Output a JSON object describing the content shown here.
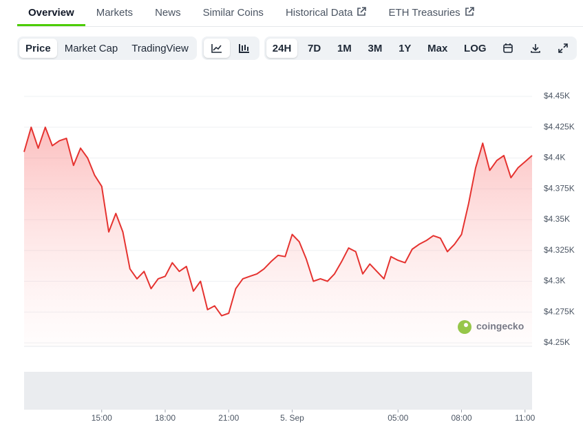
{
  "tabs": [
    "Overview",
    "Markets",
    "News",
    "Similar Coins",
    "Historical Data",
    "ETH Treasuries"
  ],
  "view_buttons": [
    "Price",
    "Market Cap",
    "TradingView"
  ],
  "range_buttons": [
    "24H",
    "7D",
    "1M",
    "3M",
    "1Y",
    "Max",
    "LOG"
  ],
  "watermark": "coingecko",
  "chart_data": {
    "type": "line",
    "color": "#e5322f",
    "categories": [
      null,
      null,
      null,
      null,
      null,
      null,
      null,
      null,
      null,
      null,
      null,
      "15:00",
      null,
      null,
      null,
      null,
      null,
      null,
      null,
      null,
      "18:00",
      null,
      null,
      null,
      null,
      null,
      null,
      null,
      null,
      "21:00",
      null,
      null,
      null,
      null,
      null,
      null,
      null,
      null,
      "5. Sep",
      null,
      null,
      null,
      null,
      null,
      null,
      null,
      null,
      null,
      null,
      null,
      null,
      null,
      null,
      "05:00",
      null,
      null,
      null,
      null,
      null,
      null,
      null,
      null,
      "08:00",
      null,
      null,
      null,
      null,
      null,
      null,
      null,
      null,
      "11:00",
      null
    ],
    "values": [
      4405,
      4425,
      4408,
      4425,
      4410,
      4414,
      4416,
      4394,
      4408,
      4400,
      4386,
      4377,
      4340,
      4355,
      4340,
      4310,
      4302,
      4308,
      4294,
      4302,
      4304,
      4315,
      4308,
      4312,
      4292,
      4300,
      4277,
      4280,
      4272,
      4274,
      4294,
      4302,
      4304,
      4306,
      4310,
      4316,
      4321,
      4320,
      4338,
      4332,
      4318,
      4300,
      4302,
      4300,
      4306,
      4316,
      4327,
      4324,
      4306,
      4314,
      4308,
      4302,
      4320,
      4317,
      4315,
      4326,
      4330,
      4333,
      4337,
      4335,
      4324,
      4330,
      4338,
      4363,
      4392,
      4412,
      4390,
      4398,
      4402,
      4384,
      4392,
      4397,
      4402
    ],
    "ylim": [
      4250,
      4450
    ],
    "yticks": [
      {
        "value": 4250,
        "label": "$4.25K"
      },
      {
        "value": 4275,
        "label": "$4.275K"
      },
      {
        "value": 4300,
        "label": "$4.3K"
      },
      {
        "value": 4325,
        "label": "$4.325K"
      },
      {
        "value": 4350,
        "label": "$4.35K"
      },
      {
        "value": 4375,
        "label": "$4.375K"
      },
      {
        "value": 4400,
        "label": "$4.4K"
      },
      {
        "value": 4425,
        "label": "$4.425K"
      },
      {
        "value": 4450,
        "label": "$4.45K"
      }
    ],
    "grid": true
  }
}
